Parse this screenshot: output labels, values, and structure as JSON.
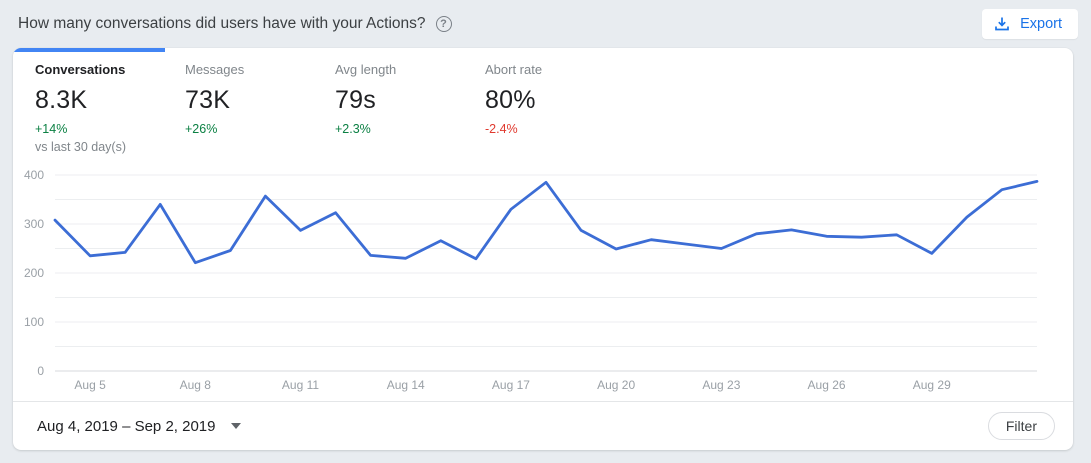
{
  "header": {
    "title": "How many conversations did users have with your Actions?",
    "help_icon": "help-circle-icon",
    "export_label": "Export"
  },
  "metrics": {
    "compare_note": "vs last 30 day(s)",
    "items": [
      {
        "label": "Conversations",
        "value": "8.3K",
        "delta": "+14%",
        "trend": "up",
        "active": true
      },
      {
        "label": "Messages",
        "value": "73K",
        "delta": "+26%",
        "trend": "up",
        "active": false
      },
      {
        "label": "Avg length",
        "value": "79s",
        "delta": "+2.3%",
        "trend": "up",
        "active": false
      },
      {
        "label": "Abort rate",
        "value": "80%",
        "delta": "-2.4%",
        "trend": "down",
        "active": false
      }
    ]
  },
  "chart_data": {
    "type": "line",
    "categories": [
      "Aug 4",
      "Aug 5",
      "Aug 6",
      "Aug 7",
      "Aug 8",
      "Aug 9",
      "Aug 10",
      "Aug 11",
      "Aug 12",
      "Aug 13",
      "Aug 14",
      "Aug 15",
      "Aug 16",
      "Aug 17",
      "Aug 18",
      "Aug 19",
      "Aug 20",
      "Aug 21",
      "Aug 22",
      "Aug 23",
      "Aug 24",
      "Aug 25",
      "Aug 26",
      "Aug 27",
      "Aug 28",
      "Aug 29",
      "Aug 30",
      "Aug 31",
      "Sep 1"
    ],
    "values": [
      308,
      235,
      242,
      340,
      221,
      246,
      357,
      287,
      323,
      236,
      230,
      266,
      229,
      330,
      385,
      287,
      249,
      268,
      259,
      250,
      280,
      288,
      275,
      273,
      278,
      240,
      314,
      370,
      387
    ],
    "x_ticks": [
      "Aug 5",
      "Aug 8",
      "Aug 11",
      "Aug 14",
      "Aug 17",
      "Aug 20",
      "Aug 23",
      "Aug 26",
      "Aug 29"
    ],
    "ylim": [
      0,
      400
    ],
    "y_label_step": 100,
    "grid_step": 50,
    "grid": true,
    "legend": "none",
    "xlabel": "",
    "ylabel": ""
  },
  "footer": {
    "date_range": "Aug 4, 2019 – Sep 2, 2019",
    "filter_label": "Filter"
  },
  "colors": {
    "accent": "#1a73e8",
    "tab_indicator": "#4285f4",
    "line": "#3c6dd5",
    "positive": "#0b8043",
    "negative": "#e03a2f",
    "grid_minor": "#eceef0",
    "grid_zero": "#d7dadd",
    "axis_text": "#9aa0a6"
  }
}
